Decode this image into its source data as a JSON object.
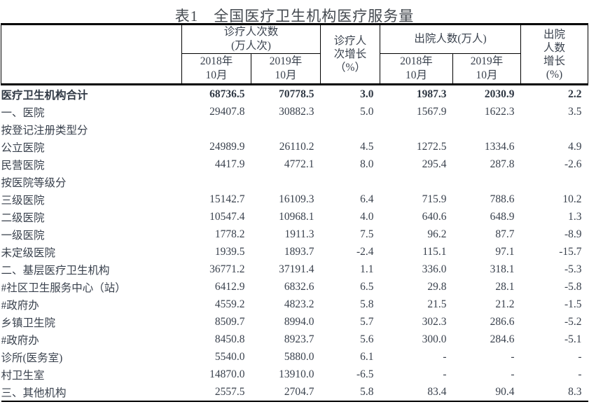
{
  "title": "表1　全国医疗卫生机构医疗服务量",
  "table": {
    "header": {
      "outpatient_group": [
        "诊疗人次数",
        "(万人次)"
      ],
      "outpatient_growth": [
        "诊疗人",
        "次增长",
        "（%）"
      ],
      "discharge_group": "出院人数(万人)",
      "discharge_growth": [
        "出院",
        "人数",
        "增长",
        "(%)"
      ],
      "period_2018": [
        "2018年",
        "10月"
      ],
      "period_2019": [
        "2019年",
        "10月"
      ]
    },
    "rows": [
      {
        "label": "医疗卫生机构合计",
        "indent": 0,
        "bold": true,
        "values": [
          "68736.5",
          "70778.5",
          "3.0",
          "1987.3",
          "2030.9",
          "2.2"
        ]
      },
      {
        "label": "一、医院",
        "indent": 0,
        "values": [
          "29407.8",
          "30882.3",
          "5.0",
          "1567.9",
          "1622.3",
          "3.5"
        ]
      },
      {
        "label": "按登记注册类型分",
        "indent": 1,
        "values": [
          "",
          "",
          "",
          "",
          "",
          ""
        ]
      },
      {
        "label": "公立医院",
        "indent": 2,
        "values": [
          "24989.9",
          "26110.2",
          "4.5",
          "1272.5",
          "1334.6",
          "4.9"
        ]
      },
      {
        "label": "民营医院",
        "indent": 2,
        "values": [
          "4417.9",
          "4772.1",
          "8.0",
          "295.4",
          "287.8",
          "-2.6"
        ]
      },
      {
        "label": "按医院等级分",
        "indent": 1,
        "values": [
          "",
          "",
          "",
          "",
          "",
          ""
        ]
      },
      {
        "label": "三级医院",
        "indent": 2,
        "values": [
          "15142.7",
          "16109.3",
          "6.4",
          "715.9",
          "788.6",
          "10.2"
        ]
      },
      {
        "label": "二级医院",
        "indent": 2,
        "values": [
          "10547.4",
          "10968.1",
          "4.0",
          "640.6",
          "648.9",
          "1.3"
        ]
      },
      {
        "label": "一级医院",
        "indent": 2,
        "values": [
          "1778.2",
          "1911.3",
          "7.5",
          "96.2",
          "87.7",
          "-8.9"
        ]
      },
      {
        "label": "未定级医院",
        "indent": 2,
        "values": [
          "1939.5",
          "1893.7",
          "-2.4",
          "115.1",
          "97.1",
          "-15.7"
        ]
      },
      {
        "label": "二、基层医疗卫生机构",
        "indent": 0,
        "values": [
          "36771.2",
          "37191.4",
          "1.1",
          "336.0",
          "318.1",
          "-5.3"
        ]
      },
      {
        "label": "#社区卫生服务中心（站）",
        "indent": 1,
        "values": [
          "6412.9",
          "6832.6",
          "6.5",
          "29.8",
          "28.1",
          "-5.8"
        ]
      },
      {
        "label": "#政府办",
        "indent": 3,
        "values": [
          "4559.2",
          "4823.2",
          "5.8",
          "21.5",
          "21.2",
          "-1.5"
        ]
      },
      {
        "label": "乡镇卫生院",
        "indent": 2,
        "values": [
          "8509.7",
          "8994.0",
          "5.7",
          "302.3",
          "286.6",
          "-5.2"
        ]
      },
      {
        "label": "#政府办",
        "indent": 3,
        "values": [
          "8450.8",
          "8923.7",
          "5.6",
          "300.0",
          "284.6",
          "-5.1"
        ]
      },
      {
        "label": "诊所(医务室)",
        "indent": 2,
        "values": [
          "5540.0",
          "5880.0",
          "6.1",
          "-",
          "-",
          "-"
        ]
      },
      {
        "label": "村卫生室",
        "indent": 2,
        "values": [
          "14870.0",
          "13910.0",
          "-6.5",
          "-",
          "-",
          "-"
        ]
      },
      {
        "label": "三、其他机构",
        "indent": 0,
        "values": [
          "2557.5",
          "2704.7",
          "5.8",
          "83.4",
          "90.4",
          "8.3"
        ]
      }
    ]
  }
}
